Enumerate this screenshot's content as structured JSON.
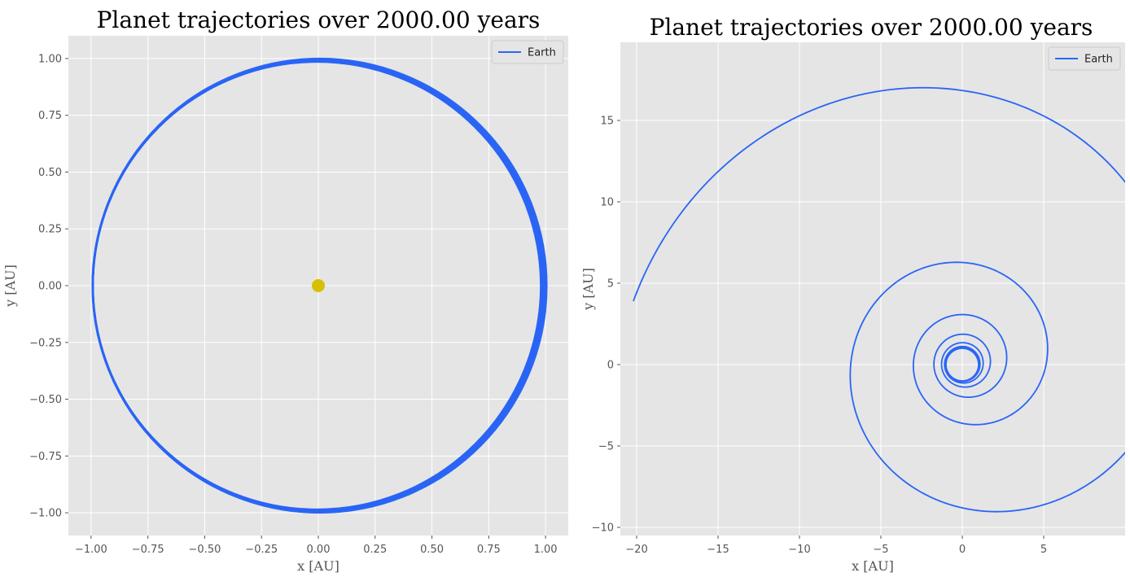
{
  "chart_data": [
    {
      "type": "line",
      "title": "Planet trajectories over 2000.00 years",
      "xlabel": "x [AU]",
      "ylabel": "y [AU]",
      "xlim": [
        -1.1,
        1.1
      ],
      "ylim": [
        -1.1,
        1.1
      ],
      "xticks": [
        -1.0,
        -0.75,
        -0.5,
        -0.25,
        0.0,
        0.25,
        0.5,
        0.75,
        1.0
      ],
      "xtick_labels": [
        "−1.00",
        "−0.75",
        "−0.50",
        "−0.25",
        "0.00",
        "0.25",
        "0.50",
        "0.75",
        "1.00"
      ],
      "yticks": [
        1.0,
        0.75,
        0.5,
        0.25,
        0.0,
        -0.25,
        -0.5,
        -0.75,
        -1.0
      ],
      "ytick_labels": [
        "1.00",
        "0.75",
        "0.50",
        "0.25",
        "0.00",
        "−0.25",
        "−0.50",
        "−0.75",
        "−1.00"
      ],
      "grid": true,
      "legend": {
        "position": "top-right",
        "entries": [
          "Earth"
        ]
      },
      "series": [
        {
          "name": "Earth",
          "shape": "circle",
          "center": [
            0,
            0
          ],
          "radius_range": [
            0.985,
            1.0
          ],
          "color": "#2a65f5"
        }
      ],
      "sun": {
        "x": 0.0,
        "y": 0.0,
        "color": "#d6c000"
      }
    },
    {
      "type": "line",
      "title": "Planet trajectories over 2000.00 years",
      "xlabel": "x [AU]",
      "ylabel": "y [AU]",
      "xlim": [
        -21,
        10
      ],
      "ylim": [
        -10.5,
        19.8
      ],
      "xticks": [
        -20,
        -15,
        -10,
        -5,
        0,
        5
      ],
      "xtick_labels": [
        "−20",
        "−15",
        "−10",
        "−5",
        "0",
        "5"
      ],
      "yticks": [
        15,
        10,
        5,
        0,
        -5,
        -10
      ],
      "ytick_labels": [
        "15",
        "10",
        "5",
        "0",
        "−5",
        "−10"
      ],
      "grid": true,
      "legend": {
        "position": "top-right",
        "entries": [
          "Earth"
        ]
      },
      "series": [
        {
          "name": "Earth",
          "shape": "outward-spiral",
          "center": [
            0,
            0
          ],
          "start_radius": 1.0,
          "end_point": [
            -21,
            3.3
          ],
          "color": "#2a65f5"
        }
      ]
    }
  ]
}
